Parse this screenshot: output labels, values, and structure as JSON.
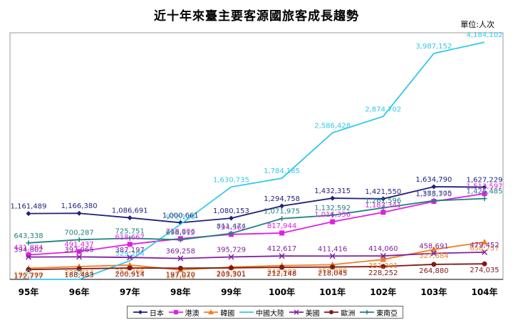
{
  "chart_data": {
    "type": "line",
    "title": "近十年來臺主要客源國旅客成長趨勢",
    "unit_label": "單位:人次",
    "categories": [
      "95年",
      "96年",
      "97年",
      "98年",
      "99年",
      "100年",
      "101年",
      "102年",
      "103年",
      "104年"
    ],
    "ylim": [
      0,
      4300000
    ],
    "grid": false,
    "legend_position": "bottom",
    "series": [
      {
        "name": "日本",
        "color": "#1f1f7a",
        "marker": "diamond",
        "values": [
          1161489,
          1166380,
          1086691,
          1000661,
          1080153,
          1294758,
          1432315,
          1421550,
          1634790,
          1627229
        ],
        "labels": [
          "1,161,489",
          "1,166,380",
          "1,086,691",
          "1,000,661",
          "1,080,153",
          "1,294,758",
          "1,432,315",
          "1,421,550",
          "1,634,790",
          "1,627,229"
        ]
      },
      {
        "name": "港澳",
        "color": "#e020e0",
        "marker": "square",
        "values": [
          431884,
          491437,
          618667,
          718806,
          794362,
          817944,
          1016356,
          1183341,
          1375770,
          1513597
        ],
        "labels": [
          "431,884",
          "491,437",
          "618,667",
          "718,806",
          "794,362",
          "817,944",
          "1,016,356",
          "1,183,341",
          "1,375,770",
          "1,513,597"
        ]
      },
      {
        "name": "韓國",
        "color": "#f08020",
        "marker": "triangle",
        "values": [
          196260,
          225814,
          252266,
          167641,
          216901,
          242902,
          259089,
          351301,
          527684,
          658757
        ],
        "labels": [
          "196,260",
          "225,814",
          "252,266",
          "167,641",
          "216,901",
          "242,902",
          "259,089",
          "351,301",
          "527,684",
          "658,757"
        ]
      },
      {
        "name": "中國大陸",
        "color": "#33c8e8",
        "marker": "none",
        "values": [
          0,
          0,
          329204,
          972123,
          1630735,
          1784185,
          2586428,
          2874702,
          3987152,
          4184102
        ],
        "labels": [
          "0",
          "0",
          "329,204",
          "972,123",
          "1,630,735",
          "1,784,185",
          "2,586,428",
          "2,874,702",
          "3,987,152",
          "4,184,102"
        ]
      },
      {
        "name": "美國",
        "color": "#8020a0",
        "marker": "x",
        "values": [
          394802,
          397965,
          387197,
          369258,
          395729,
          412617,
          411416,
          414060,
          458691,
          479452
        ],
        "labels": [
          "394,802",
          "397,965",
          "387,197",
          "369,258",
          "395,729",
          "412,617",
          "411,416",
          "414,060",
          "458,691",
          "479,452"
        ]
      },
      {
        "name": "歐洲",
        "color": "#801818",
        "marker": "circle",
        "values": [
          172777,
          188483,
          200914,
          197070,
          203301,
          212148,
          218045,
          228252,
          264880,
          274035
        ],
        "labels": [
          "172,777",
          "188,483",
          "200,914",
          "197,070",
          "203,301",
          "212,148",
          "218,045",
          "228,252",
          "264,880",
          "274,035"
        ]
      },
      {
        "name": "東南亞",
        "color": "#208080",
        "marker": "plus",
        "values": [
          643338,
          700287,
          725751,
          698912,
          811474,
          1071975,
          1132592,
          1261596,
          1388305,
          1425485
        ],
        "labels": [
          "643,338",
          "700,287",
          "725,751",
          "698,912",
          "811,474",
          "1,071,975",
          "1,132,592",
          "1,261,596",
          "1,388,305",
          "1,425,485"
        ]
      }
    ]
  }
}
